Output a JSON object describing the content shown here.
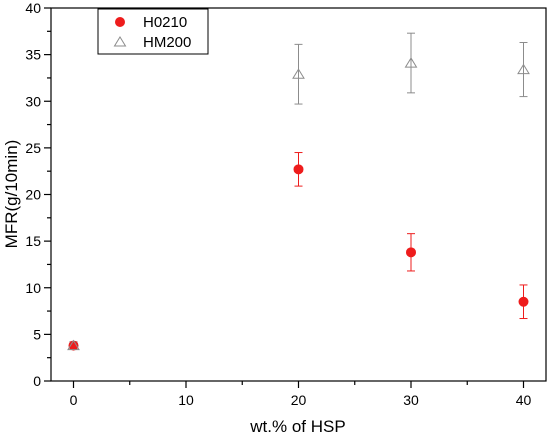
{
  "chart_data": {
    "type": "scatter",
    "xlabel": "wt.% of HSP",
    "ylabel": "MFR(g/10min)",
    "xlim": [
      -2,
      42
    ],
    "ylim": [
      0,
      40
    ],
    "xticks": [
      0,
      10,
      20,
      30,
      40
    ],
    "yticks": [
      0,
      5,
      10,
      15,
      20,
      25,
      30,
      35,
      40
    ],
    "grid": false,
    "legend_position": "top-left",
    "series": [
      {
        "name": "H0210",
        "marker": "filled-circle",
        "color": "#ee1c1c",
        "x": [
          0,
          20,
          30,
          40
        ],
        "y": [
          3.8,
          22.7,
          13.8,
          8.5
        ],
        "error": [
          0.4,
          1.8,
          2.0,
          1.8
        ]
      },
      {
        "name": "HM200",
        "marker": "open-triangle",
        "color": "#8c8c8c",
        "x": [
          0,
          20,
          30,
          40
        ],
        "y": [
          3.8,
          32.9,
          34.1,
          33.4
        ],
        "error": [
          0.4,
          3.2,
          3.2,
          2.9
        ]
      }
    ]
  }
}
